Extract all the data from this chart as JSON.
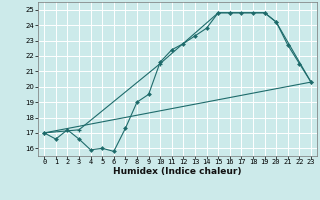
{
  "title": "",
  "xlabel": "Humidex (Indice chaleur)",
  "bg_color": "#cceaea",
  "grid_color": "#ffffff",
  "line_color": "#1e6b6b",
  "xlim": [
    -0.5,
    23.5
  ],
  "ylim": [
    15.5,
    25.5
  ],
  "xticks": [
    0,
    1,
    2,
    3,
    4,
    5,
    6,
    7,
    8,
    9,
    10,
    11,
    12,
    13,
    14,
    15,
    16,
    17,
    18,
    19,
    20,
    21,
    22,
    23
  ],
  "yticks": [
    16,
    17,
    18,
    19,
    20,
    21,
    22,
    23,
    24,
    25
  ],
  "line1_x": [
    0,
    1,
    2,
    3,
    4,
    5,
    6,
    7,
    8,
    9,
    10,
    11,
    12,
    13,
    14,
    15,
    16,
    17,
    18,
    19,
    20,
    21,
    22,
    23
  ],
  "line1_y": [
    17.0,
    16.6,
    17.2,
    16.6,
    15.9,
    16.0,
    15.8,
    17.3,
    19.0,
    19.5,
    21.6,
    22.4,
    22.8,
    23.3,
    23.8,
    24.8,
    24.8,
    24.8,
    24.8,
    24.8,
    24.2,
    22.7,
    21.5,
    20.3
  ],
  "line2_x": [
    0,
    3,
    10,
    15,
    16,
    19,
    20,
    23
  ],
  "line2_y": [
    17.0,
    17.2,
    21.5,
    24.8,
    24.8,
    24.8,
    24.2,
    20.3
  ],
  "line3_x": [
    0,
    23
  ],
  "line3_y": [
    17.0,
    20.3
  ],
  "xlabel_fontsize": 6.5,
  "tick_fontsize": 5.0
}
